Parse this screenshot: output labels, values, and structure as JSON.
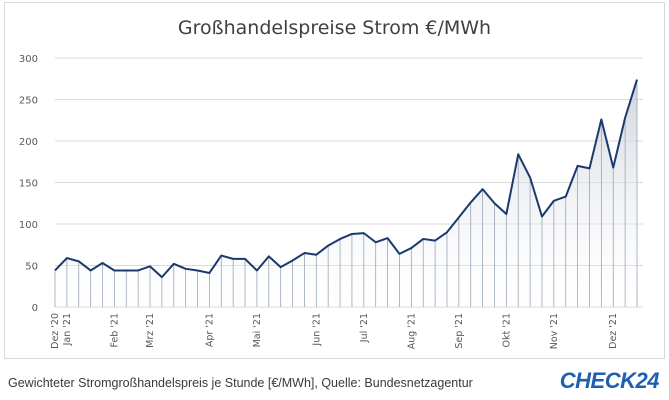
{
  "chart_data": {
    "type": "area",
    "title": "Großhandelspreise Strom €/MWh",
    "ylim": [
      0,
      300
    ],
    "yticks": [
      0,
      50,
      100,
      150,
      200,
      250,
      300
    ],
    "grid": true,
    "x_labels": [
      "Dez '20",
      "Jan '21",
      "Feb '21",
      "Mrz '21",
      "Apr '21",
      "Mai '21",
      "Jun '21",
      "Jul '21",
      "Aug '21",
      "Sep '21",
      "Okt '21",
      "Nov '21",
      "Dez '21"
    ],
    "x_label_index": [
      0,
      1,
      5,
      8,
      13,
      17,
      22,
      26,
      30,
      34,
      38,
      42,
      47
    ],
    "series": [
      {
        "values": [
          44,
          59,
          55,
          44,
          53,
          44,
          44,
          44,
          49,
          36,
          52,
          46,
          44,
          41,
          62,
          58,
          58,
          44,
          61,
          48,
          56,
          65,
          63,
          74,
          82,
          88,
          89,
          78,
          83,
          64,
          71,
          82,
          80,
          90,
          108,
          126,
          142,
          125,
          112,
          184,
          156,
          109,
          128,
          133,
          170,
          167,
          226,
          168,
          228,
          274
        ]
      }
    ]
  },
  "caption": "Gewichteter Stromgroßhandelspreis je Stunde [€/MWh], Quelle: Bundesnetzagentur",
  "logo": {
    "text": "CHECK",
    "num": "24",
    "color": "#1e5fb4"
  },
  "colors": {
    "line": "#1b3a6b",
    "area_top": "#c9cfd9",
    "grid": "#d9d9d9",
    "axis_text": "#595959"
  }
}
